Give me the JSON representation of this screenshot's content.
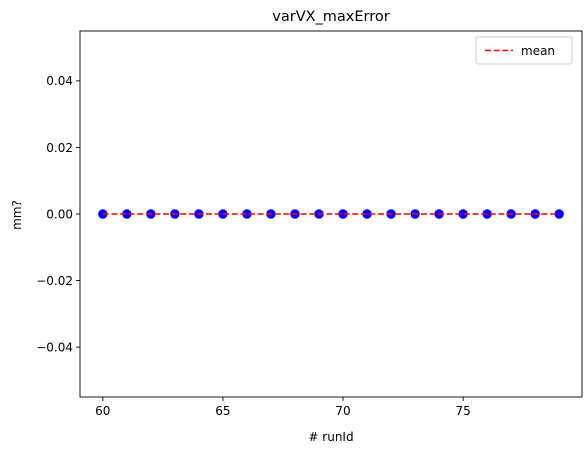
{
  "chart_data": {
    "type": "scatter",
    "title": "varVX_maxError",
    "xlabel": "# runId",
    "ylabel": "mm?",
    "xlim": [
      59.05,
      79.95
    ],
    "ylim": [
      -0.055,
      0.055
    ],
    "x_ticks": [
      60,
      65,
      70,
      75
    ],
    "x_tick_labels": [
      "60",
      "65",
      "70",
      "75"
    ],
    "y_ticks": [
      -0.04,
      -0.02,
      0.0,
      0.02,
      0.04
    ],
    "y_tick_labels": [
      "−0.04",
      "−0.02",
      "0.00",
      "0.02",
      "0.04"
    ],
    "grid": false,
    "legend_position": "top-right",
    "series": [
      {
        "kind": "scatter",
        "color": "#0000ff",
        "x": [
          60,
          61,
          62,
          63,
          64,
          65,
          66,
          67,
          68,
          69,
          70,
          71,
          72,
          73,
          74,
          75,
          76,
          77,
          78,
          79
        ],
        "y": [
          0,
          0,
          0,
          0,
          0,
          0,
          0,
          0,
          0,
          0,
          0,
          0,
          0,
          0,
          0,
          0,
          0,
          0,
          0,
          0
        ]
      },
      {
        "kind": "line",
        "name": "mean",
        "style": "dashed",
        "color": "#ff0000",
        "x": [
          60,
          79
        ],
        "y": [
          0,
          0
        ]
      }
    ]
  }
}
